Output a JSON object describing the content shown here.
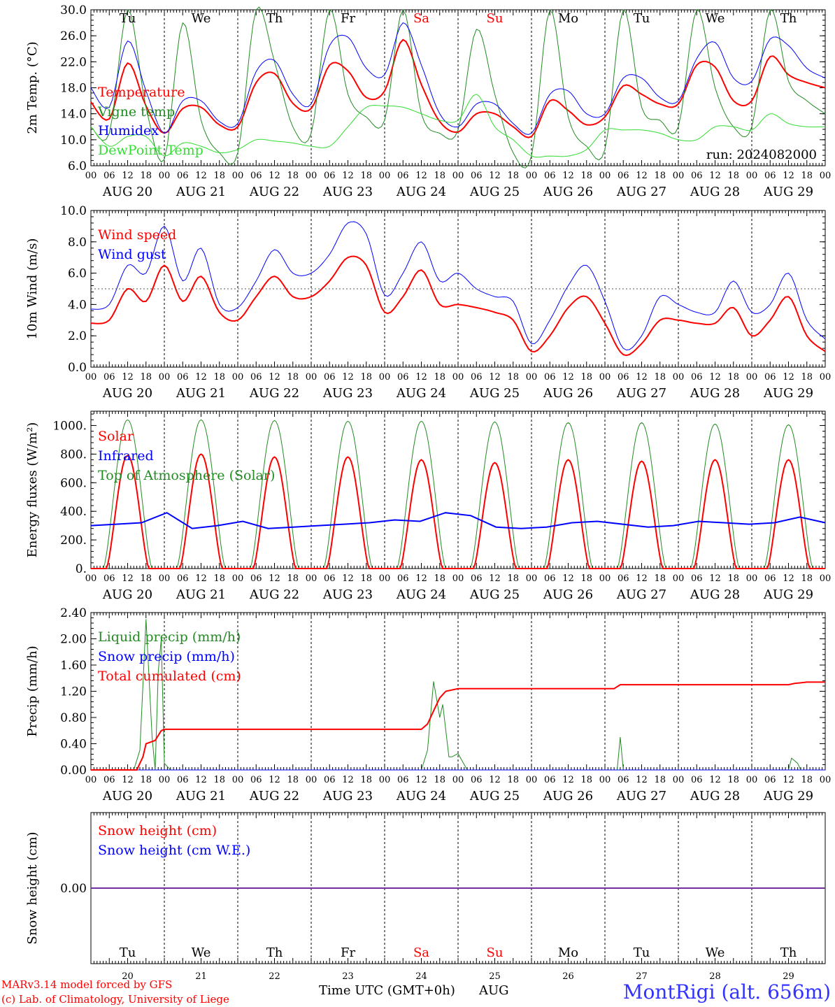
{
  "days": [
    {
      "abbr": "Tu",
      "date": "AUG 20",
      "num": "20",
      "weekend": false
    },
    {
      "abbr": "We",
      "date": "AUG 21",
      "num": "21",
      "weekend": false
    },
    {
      "abbr": "Th",
      "date": "AUG 22",
      "num": "22",
      "weekend": false
    },
    {
      "abbr": "Fr",
      "date": "AUG 23",
      "num": "23",
      "weekend": false
    },
    {
      "abbr": "Sa",
      "date": "AUG 24",
      "num": "24",
      "weekend": true
    },
    {
      "abbr": "Su",
      "date": "AUG 25",
      "num": "25",
      "weekend": true
    },
    {
      "abbr": "Mo",
      "date": "AUG 26",
      "num": "26",
      "weekend": false
    },
    {
      "abbr": "Tu",
      "date": "AUG 27",
      "num": "27",
      "weekend": false
    },
    {
      "abbr": "We",
      "date": "AUG 28",
      "num": "28",
      "weekend": false
    },
    {
      "abbr": "Th",
      "date": "AUG 29",
      "num": "29",
      "weekend": false
    }
  ],
  "hour_ticks": [
    "00",
    "06",
    "12",
    "18"
  ],
  "hour_tick_end": "00",
  "colors": {
    "red": "#ff0000",
    "green": "#228b22",
    "blue": "#0000ff",
    "lightgreen": "#33dd33",
    "weekend": "#ff0000",
    "snowline": "#7030a0"
  },
  "footer": {
    "model": "MARv3.14 model forced by GFS",
    "lab": "(c) Lab. of Climatology, University of Liege",
    "xlabel": "Time UTC (GMT+0h)",
    "month": "AUG",
    "station": "MontRigi (alt. 656m)"
  },
  "chart_data": [
    {
      "type": "line",
      "ylabel": "2m Temp. (°C)",
      "ylim": [
        6,
        30
      ],
      "yticks": [
        "6.0",
        "10.0",
        "14.0",
        "18.0",
        "22.0",
        "26.0",
        "30.0"
      ],
      "annotation": "run: 2024082000",
      "x_hours": [
        0,
        6,
        12,
        18,
        24,
        30,
        36,
        42,
        48,
        54,
        60,
        66,
        72,
        78,
        84,
        90,
        96,
        102,
        108,
        114,
        120,
        126,
        132,
        138,
        144,
        150,
        156,
        162,
        168,
        174,
        180,
        186,
        192,
        198,
        204,
        210,
        216,
        222,
        228,
        234,
        240
      ],
      "series": [
        {
          "name": "Temperature",
          "color": "#ff0000",
          "width": 2,
          "values": [
            15.8,
            13.2,
            21.8,
            15.2,
            11.0,
            14.8,
            15.0,
            12.3,
            12.0,
            18.8,
            20.2,
            15.6,
            14.8,
            21.5,
            20.6,
            16.5,
            17.5,
            25.4,
            18.5,
            12.8,
            11.2,
            14.0,
            14.0,
            12.0,
            10.5,
            16.0,
            14.5,
            12.3,
            13.5,
            18.3,
            17.0,
            15.5,
            15.5,
            21.5,
            21.2,
            16.0,
            16.0,
            22.8,
            20.0,
            18.8,
            18.0
          ]
        },
        {
          "name": "Vigne temp",
          "color": "#228b22",
          "width": 1,
          "values": [
            12.0,
            11.0,
            30.0,
            15.0,
            7.0,
            28.0,
            13.0,
            8.0,
            8.0,
            30.0,
            22.0,
            12.0,
            11.0,
            30.0,
            17.0,
            13.5,
            13.0,
            30.0,
            14.0,
            11.0,
            11.5,
            27.0,
            17.0,
            8.0,
            7.5,
            30.0,
            13.5,
            9.0,
            8.5,
            30.0,
            15.0,
            13.0,
            12.0,
            30.0,
            18.0,
            12.0,
            12.0,
            30.0,
            19.0,
            16.0,
            14.0
          ]
        },
        {
          "name": "Humidex",
          "color": "#0000ff",
          "width": 1,
          "values": [
            18.0,
            15.0,
            25.2,
            17.5,
            11.0,
            16.0,
            16.0,
            12.8,
            12.5,
            20.5,
            22.2,
            17.0,
            15.5,
            24.5,
            25.8,
            21.0,
            20.0,
            28.0,
            21.5,
            14.0,
            12.0,
            15.5,
            15.5,
            12.5,
            11.0,
            17.0,
            17.5,
            14.0,
            14.0,
            19.5,
            19.5,
            16.5,
            16.0,
            22.5,
            25.0,
            19.5,
            19.0,
            25.5,
            24.5,
            21.0,
            19.5
          ]
        },
        {
          "name": "DewPoint Temp",
          "color": "#33dd33",
          "width": 1,
          "values": [
            12.0,
            9.0,
            10.5,
            10.5,
            7.5,
            9.5,
            9.0,
            8.0,
            8.5,
            10.0,
            9.8,
            9.5,
            9.0,
            9.0,
            12.0,
            15.0,
            15.2,
            15.0,
            14.0,
            13.0,
            13.0,
            17.0,
            12.0,
            10.0,
            7.5,
            7.5,
            7.5,
            8.5,
            11.5,
            11.5,
            11.5,
            11.0,
            10.0,
            10.0,
            12.0,
            12.0,
            11.5,
            14.0,
            12.5,
            12.0,
            12.0
          ]
        }
      ]
    },
    {
      "type": "line",
      "ylabel": "10m Wind (m/s)",
      "ylim": [
        0,
        10
      ],
      "yticks": [
        "0.0",
        "2.0",
        "4.0",
        "6.0",
        "8.0",
        "10.0"
      ],
      "ref_line": 5,
      "x_hours": [
        0,
        6,
        12,
        18,
        24,
        30,
        36,
        42,
        48,
        54,
        60,
        66,
        72,
        78,
        84,
        90,
        96,
        102,
        108,
        114,
        120,
        126,
        132,
        138,
        144,
        150,
        156,
        162,
        168,
        174,
        180,
        186,
        192,
        198,
        204,
        210,
        216,
        222,
        228,
        234,
        240
      ],
      "series": [
        {
          "name": "Wind speed",
          "color": "#ff0000",
          "width": 2,
          "values": [
            2.8,
            3.0,
            5.0,
            4.2,
            6.5,
            4.2,
            5.8,
            3.5,
            3.0,
            4.5,
            5.8,
            4.5,
            4.5,
            5.5,
            7.0,
            6.5,
            3.5,
            4.5,
            6.2,
            4.0,
            4.0,
            3.8,
            3.5,
            3.0,
            1.0,
            2.0,
            3.8,
            4.5,
            2.8,
            0.8,
            1.5,
            3.0,
            3.0,
            2.8,
            2.8,
            3.8,
            2.0,
            3.0,
            4.5,
            2.0,
            1.0
          ]
        },
        {
          "name": "Wind gust",
          "color": "#0000ff",
          "width": 1,
          "values": [
            3.7,
            4.0,
            6.5,
            6.0,
            9.0,
            5.5,
            7.6,
            4.0,
            3.8,
            5.5,
            7.5,
            6.0,
            6.0,
            7.2,
            9.2,
            8.5,
            4.6,
            6.0,
            8.0,
            5.5,
            6.0,
            5.0,
            4.5,
            4.2,
            1.5,
            3.0,
            5.2,
            6.5,
            4.2,
            1.2,
            2.0,
            4.5,
            4.0,
            3.5,
            3.5,
            5.5,
            3.5,
            4.0,
            6.0,
            3.0,
            1.8
          ]
        }
      ]
    },
    {
      "type": "line",
      "ylabel": "Energy fluxes (W/m²)",
      "ylim": [
        0,
        1100
      ],
      "yticks": [
        "0.",
        "200.",
        "400.",
        "600.",
        "800.",
        "1000."
      ],
      "series": [
        {
          "name": "Solar",
          "color": "#ff0000",
          "width": 2,
          "daily_peaks": [
            790,
            800,
            780,
            780,
            760,
            740,
            760,
            750,
            760,
            760
          ]
        },
        {
          "name": "Infrared",
          "color": "#0000ff",
          "width": 2,
          "values": [
            300,
            310,
            320,
            390,
            280,
            300,
            330,
            280,
            290,
            300,
            310,
            320,
            340,
            330,
            390,
            370,
            290,
            280,
            290,
            320,
            330,
            310,
            290,
            300,
            330,
            320,
            310,
            320,
            360,
            320
          ]
        },
        {
          "name": "Top of Atmosphere (Solar)",
          "color": "#228b22",
          "width": 1,
          "daily_peaks": [
            1040,
            1040,
            1035,
            1030,
            1030,
            1025,
            1020,
            1020,
            1010,
            1005
          ]
        }
      ]
    },
    {
      "type": "line",
      "ylabel": "Precip (mm/h)",
      "ylim": [
        0,
        2.4
      ],
      "yticks": [
        "0.00",
        "0.40",
        "0.80",
        "1.20",
        "1.60",
        "2.00",
        "2.40"
      ],
      "series": [
        {
          "name": "Liquid precip (mm/h)",
          "color": "#228b22",
          "width": 1,
          "points": [
            [
              0,
              0
            ],
            [
              14,
              0
            ],
            [
              16,
              0.3
            ],
            [
              18,
              2.3
            ],
            [
              20,
              0.5
            ],
            [
              21,
              0
            ],
            [
              22,
              1.5
            ],
            [
              23,
              2.0
            ],
            [
              24,
              0.1
            ],
            [
              26,
              0
            ],
            [
              108,
              0
            ],
            [
              110,
              0.3
            ],
            [
              112,
              1.35
            ],
            [
              114,
              0.8
            ],
            [
              115,
              1.0
            ],
            [
              117,
              0.2
            ],
            [
              118,
              0.2
            ],
            [
              120,
              0.25
            ],
            [
              123,
              0
            ],
            [
              172,
              0
            ],
            [
              173,
              0.5
            ],
            [
              174,
              0
            ],
            [
              228,
              0
            ],
            [
              229,
              0.18
            ],
            [
              231,
              0.1
            ],
            [
              232,
              0
            ],
            [
              240,
              0
            ]
          ]
        },
        {
          "name": "Snow precip (mm/h)",
          "color": "#0000ff",
          "width": 1,
          "points": [
            [
              0,
              0
            ],
            [
              240,
              0
            ]
          ]
        },
        {
          "name": "Total cumulated (cm)",
          "color": "#ff0000",
          "width": 2,
          "points": [
            [
              0,
              0
            ],
            [
              15,
              0
            ],
            [
              17,
              0.2
            ],
            [
              18,
              0.4
            ],
            [
              21,
              0.45
            ],
            [
              23,
              0.6
            ],
            [
              24,
              0.62
            ],
            [
              108,
              0.62
            ],
            [
              110,
              0.7
            ],
            [
              112,
              0.9
            ],
            [
              114,
              1.1
            ],
            [
              116,
              1.2
            ],
            [
              120,
              1.24
            ],
            [
              171,
              1.24
            ],
            [
              173,
              1.3
            ],
            [
              228,
              1.3
            ],
            [
              230,
              1.32
            ],
            [
              234,
              1.34
            ],
            [
              240,
              1.34
            ]
          ]
        }
      ]
    },
    {
      "type": "line",
      "ylabel": "Snow height (cm)",
      "yticks": [
        "0.00"
      ],
      "series": [
        {
          "name": "Snow height (cm)",
          "color": "#ff0000",
          "width": 1,
          "values": [
            0,
            0
          ]
        },
        {
          "name": "Snow height (cm W.E.)",
          "color": "#0000ff",
          "width": 1,
          "values": [
            0,
            0
          ]
        }
      ]
    }
  ]
}
